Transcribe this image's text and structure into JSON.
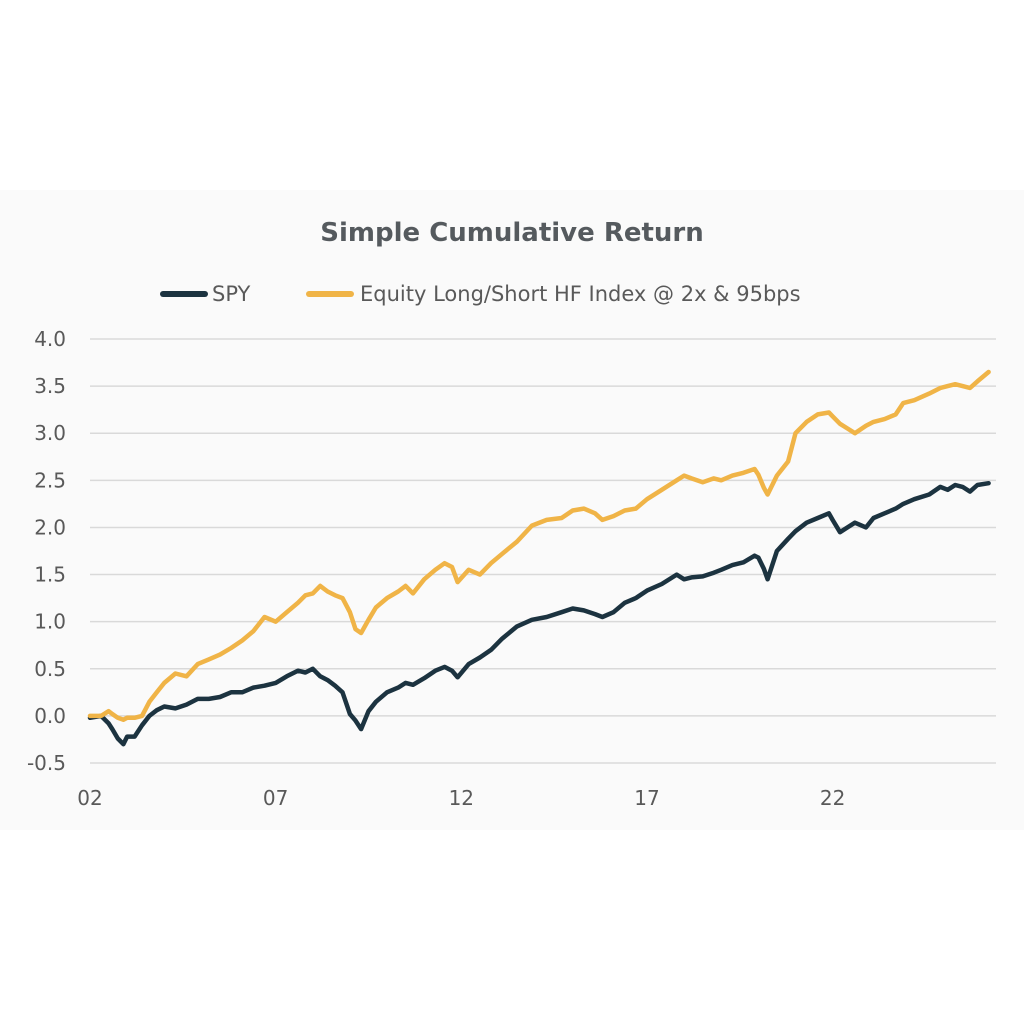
{
  "chart_data": {
    "type": "line",
    "title": "Simple Cumulative Return",
    "xlabel": "",
    "ylabel": "",
    "x_ticks": [
      "02",
      "07",
      "12",
      "17",
      "22"
    ],
    "xlim": [
      2002,
      2026.4
    ],
    "ylim": [
      -0.5,
      4.0
    ],
    "y_ticks": [
      "4.0",
      "3.5",
      "3.0",
      "2.5",
      "2.0",
      "1.5",
      "1.0",
      "0.5",
      "0.0",
      "-0.5"
    ],
    "grid": true,
    "legend_position": "top",
    "series": [
      {
        "name": "SPY",
        "color": "#1c3340",
        "x": [
          2002.0,
          2002.3,
          2002.5,
          2002.6,
          2002.75,
          2002.9,
          2003.0,
          2003.2,
          2003.4,
          2003.6,
          2003.8,
          2004.0,
          2004.3,
          2004.6,
          2004.9,
          2005.2,
          2005.5,
          2005.8,
          2006.1,
          2006.4,
          2006.7,
          2007.0,
          2007.3,
          2007.6,
          2007.8,
          2008.0,
          2008.2,
          2008.4,
          2008.6,
          2008.8,
          2009.0,
          2009.15,
          2009.3,
          2009.5,
          2009.7,
          2010.0,
          2010.3,
          2010.5,
          2010.7,
          2011.0,
          2011.3,
          2011.55,
          2011.75,
          2011.9,
          2012.2,
          2012.5,
          2012.8,
          2013.1,
          2013.5,
          2013.9,
          2014.3,
          2014.7,
          2015.0,
          2015.3,
          2015.6,
          2015.8,
          2016.1,
          2016.4,
          2016.7,
          2017.0,
          2017.4,
          2017.8,
          2018.0,
          2018.2,
          2018.5,
          2018.8,
          2019.0,
          2019.3,
          2019.6,
          2019.9,
          2020.0,
          2020.15,
          2020.25,
          2020.5,
          2020.8,
          2021.0,
          2021.3,
          2021.6,
          2021.9,
          2022.0,
          2022.2,
          2022.4,
          2022.6,
          2022.9,
          2023.1,
          2023.4,
          2023.7,
          2023.9,
          2024.2,
          2024.6,
          2024.9,
          2025.1,
          2025.3,
          2025.5,
          2025.7,
          2025.9,
          2026.2
        ],
        "y": [
          -0.02,
          0.0,
          -0.08,
          -0.14,
          -0.24,
          -0.3,
          -0.22,
          -0.22,
          -0.1,
          0.0,
          0.06,
          0.1,
          0.08,
          0.12,
          0.18,
          0.18,
          0.2,
          0.25,
          0.25,
          0.3,
          0.32,
          0.35,
          0.42,
          0.48,
          0.46,
          0.5,
          0.42,
          0.38,
          0.32,
          0.25,
          0.02,
          -0.05,
          -0.14,
          0.05,
          0.15,
          0.25,
          0.3,
          0.35,
          0.33,
          0.4,
          0.48,
          0.52,
          0.48,
          0.41,
          0.55,
          0.62,
          0.7,
          0.82,
          0.95,
          1.02,
          1.05,
          1.1,
          1.14,
          1.12,
          1.08,
          1.05,
          1.1,
          1.2,
          1.25,
          1.33,
          1.4,
          1.5,
          1.45,
          1.47,
          1.48,
          1.52,
          1.55,
          1.6,
          1.63,
          1.7,
          1.68,
          1.56,
          1.45,
          1.75,
          1.88,
          1.96,
          2.05,
          2.1,
          2.15,
          2.08,
          1.95,
          2.0,
          2.05,
          2.0,
          2.1,
          2.15,
          2.2,
          2.25,
          2.3,
          2.35,
          2.43,
          2.4,
          2.45,
          2.43,
          2.38,
          2.45,
          2.47
        ]
      },
      {
        "name": "Equity Long/Short HF Index @ 2x & 95bps",
        "color": "#f0b447",
        "x": [
          2002.0,
          2002.3,
          2002.5,
          2002.6,
          2002.75,
          2002.9,
          2003.0,
          2003.2,
          2003.4,
          2003.6,
          2003.8,
          2004.0,
          2004.3,
          2004.6,
          2004.9,
          2005.2,
          2005.5,
          2005.8,
          2006.1,
          2006.4,
          2006.7,
          2007.0,
          2007.3,
          2007.6,
          2007.8,
          2008.0,
          2008.2,
          2008.4,
          2008.6,
          2008.8,
          2009.0,
          2009.15,
          2009.3,
          2009.5,
          2009.7,
          2010.0,
          2010.3,
          2010.5,
          2010.7,
          2011.0,
          2011.3,
          2011.55,
          2011.75,
          2011.9,
          2012.2,
          2012.5,
          2012.8,
          2013.1,
          2013.5,
          2013.9,
          2014.3,
          2014.7,
          2015.0,
          2015.3,
          2015.6,
          2015.8,
          2016.1,
          2016.4,
          2016.7,
          2017.0,
          2017.4,
          2017.8,
          2018.0,
          2018.2,
          2018.5,
          2018.8,
          2019.0,
          2019.3,
          2019.6,
          2019.9,
          2020.0,
          2020.15,
          2020.25,
          2020.5,
          2020.8,
          2021.0,
          2021.3,
          2021.6,
          2021.9,
          2022.0,
          2022.2,
          2022.4,
          2022.6,
          2022.9,
          2023.1,
          2023.4,
          2023.7,
          2023.9,
          2024.2,
          2024.6,
          2024.9,
          2025.1,
          2025.3,
          2025.5,
          2025.7,
          2025.9,
          2026.2
        ],
        "y": [
          0.0,
          0.0,
          0.05,
          0.02,
          -0.02,
          -0.04,
          -0.02,
          -0.02,
          0.0,
          0.15,
          0.25,
          0.35,
          0.45,
          0.42,
          0.55,
          0.6,
          0.65,
          0.72,
          0.8,
          0.9,
          1.05,
          1.0,
          1.1,
          1.2,
          1.28,
          1.3,
          1.38,
          1.32,
          1.28,
          1.25,
          1.1,
          0.92,
          0.88,
          1.02,
          1.15,
          1.25,
          1.32,
          1.38,
          1.3,
          1.45,
          1.55,
          1.62,
          1.58,
          1.42,
          1.55,
          1.5,
          1.62,
          1.72,
          1.85,
          2.02,
          2.08,
          2.1,
          2.18,
          2.2,
          2.15,
          2.08,
          2.12,
          2.18,
          2.2,
          2.3,
          2.4,
          2.5,
          2.55,
          2.52,
          2.48,
          2.52,
          2.5,
          2.55,
          2.58,
          2.62,
          2.56,
          2.42,
          2.35,
          2.55,
          2.7,
          3.0,
          3.12,
          3.2,
          3.22,
          3.18,
          3.1,
          3.05,
          3.0,
          3.08,
          3.12,
          3.15,
          3.2,
          3.32,
          3.35,
          3.42,
          3.48,
          3.5,
          3.52,
          3.5,
          3.48,
          3.55,
          3.65
        ]
      }
    ]
  }
}
